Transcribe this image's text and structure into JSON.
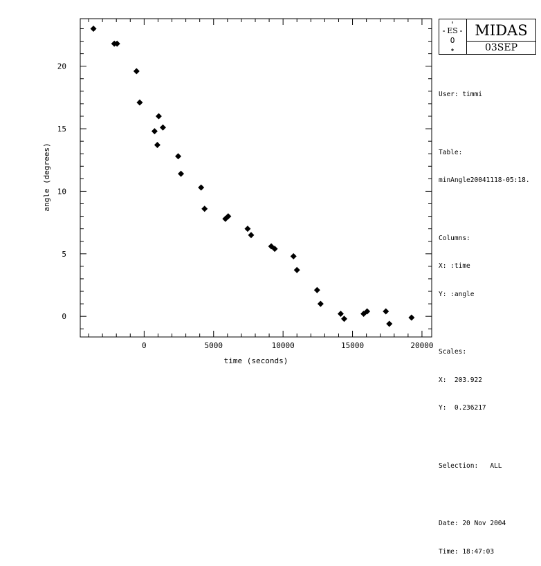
{
  "chart_data": {
    "type": "scatter",
    "title": "",
    "xlabel": "time (seconds)",
    "ylabel": "angle (degrees)",
    "xlim": [
      -4600,
      20700
    ],
    "ylim": [
      -1.65,
      23.8
    ],
    "xticks": [
      0,
      5000,
      10000,
      15000,
      20000
    ],
    "yticks": [
      0,
      5,
      10,
      15,
      20
    ],
    "xtick_labels": [
      "0",
      "5000",
      "10000",
      "15000",
      "20000"
    ],
    "ytick_labels": [
      "0",
      "5",
      "10",
      "15",
      "20"
    ],
    "marker": "diamond",
    "grid": false,
    "points": [
      {
        "x": -3650,
        "y": 23.0
      },
      {
        "x": -2150,
        "y": 21.8
      },
      {
        "x": -1950,
        "y": 21.8
      },
      {
        "x": -550,
        "y": 19.6
      },
      {
        "x": -320,
        "y": 17.1
      },
      {
        "x": 750,
        "y": 14.8
      },
      {
        "x": 1050,
        "y": 16.0
      },
      {
        "x": 950,
        "y": 13.7
      },
      {
        "x": 1350,
        "y": 15.1
      },
      {
        "x": 2450,
        "y": 12.8
      },
      {
        "x": 2650,
        "y": 11.4
      },
      {
        "x": 4100,
        "y": 10.3
      },
      {
        "x": 4350,
        "y": 8.6
      },
      {
        "x": 5850,
        "y": 7.8
      },
      {
        "x": 6050,
        "y": 8.0
      },
      {
        "x": 7450,
        "y": 7.0
      },
      {
        "x": 7700,
        "y": 6.5
      },
      {
        "x": 9150,
        "y": 5.6
      },
      {
        "x": 9400,
        "y": 5.4
      },
      {
        "x": 10750,
        "y": 4.8
      },
      {
        "x": 11000,
        "y": 3.7
      },
      {
        "x": 12450,
        "y": 2.1
      },
      {
        "x": 12700,
        "y": 1.0
      },
      {
        "x": 14150,
        "y": 0.2
      },
      {
        "x": 14400,
        "y": -0.2
      },
      {
        "x": 15800,
        "y": 0.2
      },
      {
        "x": 16050,
        "y": 0.4
      },
      {
        "x": 17400,
        "y": 0.4
      },
      {
        "x": 17650,
        "y": -0.6
      },
      {
        "x": 19250,
        "y": -0.1
      }
    ]
  },
  "logo": {
    "title": "MIDAS",
    "date_label": "03SEP",
    "emblem_text": "ES",
    "emblem_o": "O"
  },
  "info": {
    "user": "User: timmi",
    "table_label": "Table:",
    "table_name": "minAngle20041118-05:18.",
    "columns_label": "Columns:",
    "column_x": "X: :time",
    "column_y": "Y: :angle",
    "scales_label": "Scales:",
    "scale_x": "X:  203.922",
    "scale_y": "Y:  0.236217",
    "selection": "Selection:   ALL",
    "date": "Date: 20 Nov 2004",
    "time": "Time: 18:47:03"
  }
}
